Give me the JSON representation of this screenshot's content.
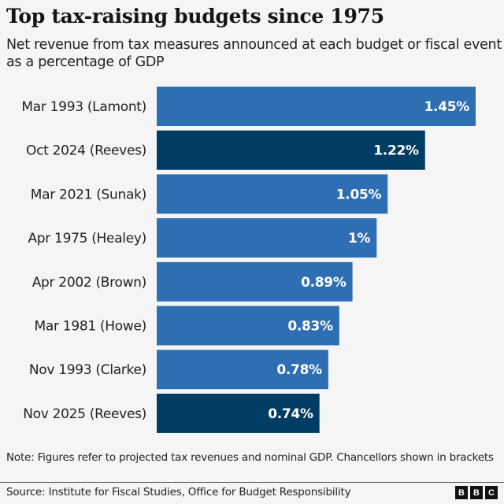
{
  "chart_data": {
    "type": "bar",
    "orientation": "horizontal",
    "title": "Top tax-raising budgets since 1975",
    "subtitle": "Net revenue from tax measures announced at each budget or fiscal event as a percentage of GDP",
    "categories": [
      "Mar 1993 (Lamont)",
      "Oct 2024 (Reeves)",
      "Mar 2021 (Sunak)",
      "Apr 1975 (Healey)",
      "Apr 2002 (Brown)",
      "Mar 1981 (Howe)",
      "Nov 1993 (Clarke)",
      "Nov 2025 (Reeves)"
    ],
    "values": [
      1.45,
      1.22,
      1.05,
      1,
      0.89,
      0.83,
      0.78,
      0.74
    ],
    "data_labels": [
      "1.45%",
      "1.22%",
      "1.05%",
      "1%",
      "0.89%",
      "0.83%",
      "0.78%",
      "0.74%"
    ],
    "highlighted": [
      false,
      true,
      false,
      false,
      false,
      false,
      false,
      true
    ],
    "colors": {
      "default": "#2e6fb3",
      "highlight": "#003c63"
    },
    "xlim": [
      0,
      1.45
    ],
    "grid": false,
    "xlabel": "",
    "ylabel": ""
  },
  "footer": {
    "note": "Note: Figures refer to projected tax revenues and nominal GDP. Chancellors shown in brackets",
    "source": "Source: Institute for Fiscal Studies, Office for Budget Responsibility",
    "logo": [
      "B",
      "B",
      "C"
    ]
  }
}
